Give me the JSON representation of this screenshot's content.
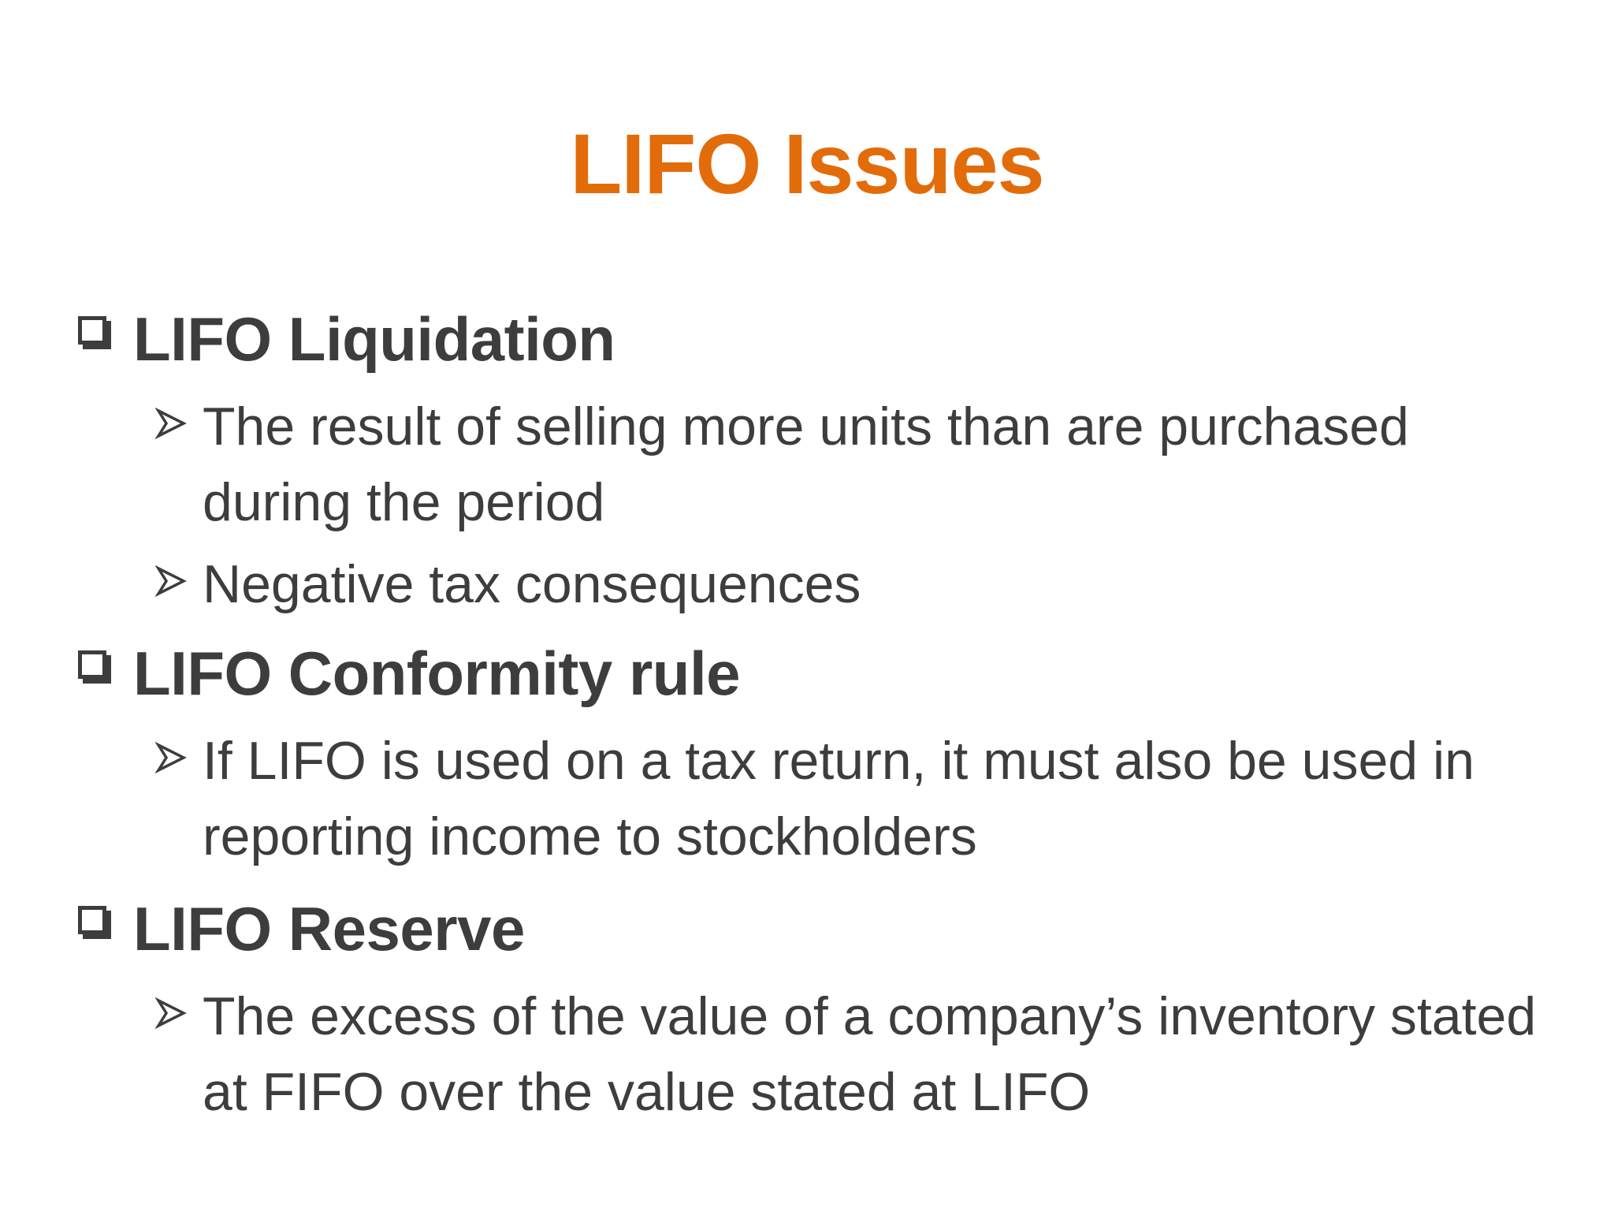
{
  "slide": {
    "title": "LIFO Issues",
    "sections": [
      {
        "heading": "LIFO Liquidation",
        "items": [
          "The result of selling more units than are purchased during the period",
          "Negative tax consequences"
        ]
      },
      {
        "heading": "LIFO Conformity rule",
        "items": [
          "If LIFO is used on a tax return, it must also be used in reporting income to stockholders"
        ]
      },
      {
        "heading": "LIFO Reserve",
        "items": [
          "The excess of the value of a company’s inventory stated at FIFO over the value stated at LIFO"
        ]
      }
    ],
    "colors": {
      "title": "#e36c0a",
      "text": "#3d3d3d",
      "background": "#ffffff"
    },
    "icons": {
      "heading_bullet": "hollow-square-icon",
      "item_bullet": "arrowhead-icon"
    }
  }
}
